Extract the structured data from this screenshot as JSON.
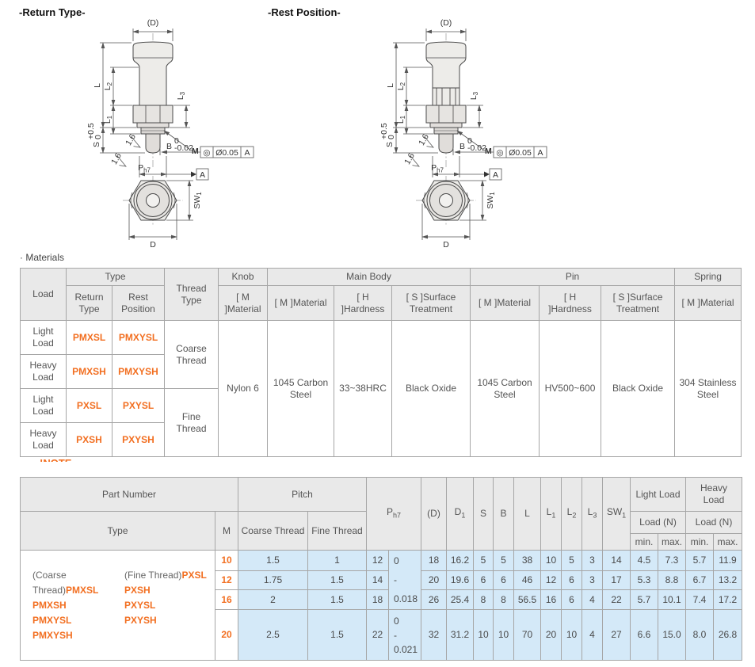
{
  "drawings": {
    "return_title": "-Return Type-",
    "rest_title": "-Rest Position-",
    "m_color": "#00a0d2",
    "dim": {
      "D": "(D)",
      "L": "L",
      "L1": "L",
      "L1s": "1",
      "L2": "L",
      "L2s": "2",
      "L3": "L",
      "L3s": "3",
      "M": "M",
      "S": "S",
      "S_tol_top": "+0.5",
      "S_tol_bot": "0",
      "B": "B",
      "B_tol_top": "0",
      "B_tol_bot": "-0.02",
      "rough": "1.6",
      "fcf_sym": "◎",
      "fcf_val": "Ø0.05",
      "fcf_datum": "A",
      "datum": "A",
      "P": "P",
      "P_sub": "h7",
      "SW": "SW",
      "SW_sub": "1",
      "D1": "D",
      "D1_sub": "1"
    }
  },
  "materials": {
    "section_title": "· Materials",
    "head": {
      "load": "Load",
      "type": "Type",
      "return_type": "Return Type",
      "rest_position": "Rest Position",
      "thread_type": "Thread Type",
      "knob": "Knob",
      "main_body": "Main Body",
      "pin": "Pin",
      "spring": "Spring",
      "m_material": "[ M ]Material",
      "h_hardness": "[ H ]Hardness",
      "s_surface": "[ S ]Surface Treatment"
    },
    "rows": [
      {
        "load": "Light Load",
        "return": "PMXSL",
        "rest": "PMXYSL"
      },
      {
        "load": "Heavy Load",
        "return": "PMXSH",
        "rest": "PMXYSH"
      },
      {
        "load": "Light Load",
        "return": "PXSL",
        "rest": "PXYSL"
      },
      {
        "load": "Heavy Load",
        "return": "PXSH",
        "rest": "PXYSH"
      }
    ],
    "thread": {
      "coarse": "Coarse Thread",
      "fine": "Fine Thread"
    },
    "values": {
      "knob_material": "Nylon 6",
      "body_material": "1045 Carbon Steel",
      "body_hardness": "33~38HRC",
      "body_surface": "Black Oxide",
      "pin_material": "1045 Carbon Steel",
      "pin_hardness": "HV500~600",
      "pin_surface": "Black Oxide",
      "spring_material": "304 Stainless Steel"
    }
  },
  "notes_label": "!NOTE",
  "spec_table": {
    "head": {
      "part_number": "Part Number",
      "pitch": "Pitch",
      "type": "Type",
      "m": "M",
      "coarse": "Coarse Thread",
      "fine": "Fine Thread",
      "ph7": "P_{h7}",
      "d": "(D)",
      "d1": "D_{1}",
      "s": "S",
      "b": "B",
      "l": "L",
      "l1": "L_{1}",
      "l2": "L_{2}",
      "l3": "L_{3}",
      "sw1": "SW_{1}",
      "light_load": "Light Load",
      "heavy_load": "Heavy Load",
      "load_n": "Load (N)",
      "min": "min.",
      "max": "max."
    },
    "type_cell": {
      "coarse_prefix": "(Coarse Thread)",
      "coarse_parts": [
        "PMXSL",
        "PMXSH",
        "PMXYSL",
        "PMXYSH"
      ],
      "fine_prefix": "(Fine Thread)",
      "fine_parts": [
        "PXSL",
        "PXSH",
        "PXYSL",
        "PXYSH"
      ]
    },
    "p_tol_1": "0\n-\n0.018",
    "p_tol_2": "0\n-\n0.021",
    "rows": [
      {
        "m": "10",
        "coarse": "1.5",
        "fine": "1",
        "p": "12",
        "d": "18",
        "d1": "16.2",
        "s": "5",
        "b": "5",
        "l": "38",
        "l1": "10",
        "l2": "5",
        "l3": "3",
        "sw1": "14",
        "ll_min": "4.5",
        "ll_max": "7.3",
        "hl_min": "5.7",
        "hl_max": "11.9"
      },
      {
        "m": "12",
        "coarse": "1.75",
        "fine": "1.5",
        "p": "14",
        "d": "20",
        "d1": "19.6",
        "s": "6",
        "b": "6",
        "l": "46",
        "l1": "12",
        "l2": "6",
        "l3": "3",
        "sw1": "17",
        "ll_min": "5.3",
        "ll_max": "8.8",
        "hl_min": "6.7",
        "hl_max": "13.2"
      },
      {
        "m": "16",
        "coarse": "2",
        "fine": "1.5",
        "p": "18",
        "d": "26",
        "d1": "25.4",
        "s": "8",
        "b": "8",
        "l": "56.5",
        "l1": "16",
        "l2": "6",
        "l3": "4",
        "sw1": "22",
        "ll_min": "5.7",
        "ll_max": "10.1",
        "hl_min": "7.4",
        "hl_max": "17.2"
      },
      {
        "m": "20",
        "coarse": "2.5",
        "fine": "1.5",
        "p": "22",
        "d": "32",
        "d1": "31.2",
        "s": "10",
        "b": "10",
        "l": "70",
        "l1": "20",
        "l2": "10",
        "l3": "4",
        "sw1": "27",
        "ll_min": "6.6",
        "ll_max": "15.0",
        "hl_min": "8.0",
        "hl_max": "26.8"
      }
    ]
  }
}
